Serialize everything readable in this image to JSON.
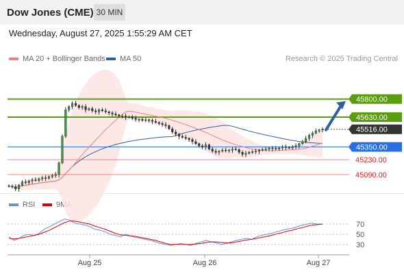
{
  "header": {
    "instrument": "Dow Jones (CME)",
    "timeframe": "30 MIN"
  },
  "datetime": "Wednesday, August 27, 2025 1:55:29 AM CET",
  "legend": {
    "bollinger": "MA 20 + Bollinger Bands",
    "ma50": "MA 50",
    "research": "Research © 2025 Trading Central",
    "rsi": "RSI",
    "rsi_ma": "9MA"
  },
  "colors": {
    "resistance": "#5a9e0f",
    "pivot": "#2a6fe0",
    "support": "#f08080",
    "current": "#333333",
    "ma20": "#f08080",
    "ma50": "#2f5f9e",
    "rsi": "#6a8fd8",
    "rsi_ma": "#e00000",
    "arrow": "#2f5f9e"
  },
  "chart_data": [
    {
      "type": "candlestick",
      "x_labels": [
        "Aug 25",
        "Aug 26",
        "Aug 27"
      ],
      "ylim": [
        44960,
        46120
      ],
      "levels": [
        {
          "value": 45800,
          "label": "45800.00",
          "kind": "resistance"
        },
        {
          "value": 45630,
          "label": "45630.00",
          "kind": "resistance"
        },
        {
          "value": 45516,
          "label": "45516.00",
          "kind": "current"
        },
        {
          "value": 45350,
          "label": "45350.00",
          "kind": "pivot"
        },
        {
          "value": 45230,
          "label": "45230.00",
          "kind": "support"
        },
        {
          "value": 45090,
          "label": "45090.00",
          "kind": "support"
        }
      ],
      "close_series": [
        44980,
        44975,
        44955,
        44990,
        45020,
        45015,
        45030,
        45040,
        45035,
        45050,
        45060,
        45055,
        45070,
        45080,
        45090,
        45200,
        45450,
        45700,
        45730,
        45760,
        45740,
        45720,
        45730,
        45700,
        45710,
        45690,
        45680,
        45700,
        45690,
        45680,
        45670,
        45660,
        45650,
        45640,
        45640,
        45630,
        45635,
        45620,
        45610,
        45610,
        45600,
        45605,
        45600,
        45590,
        45580,
        45570,
        45560,
        45550,
        45520,
        45490,
        45470,
        45450,
        45440,
        45430,
        45420,
        45400,
        45380,
        45360,
        45350,
        45370,
        45330,
        45310,
        45300,
        45310,
        45320,
        45315,
        45320,
        45330,
        45325,
        45300,
        45280,
        45290,
        45300,
        45305,
        45310,
        45320,
        45325,
        45330,
        45340,
        45335,
        45330,
        45340,
        45350,
        45345,
        45340,
        45350,
        45360,
        45380,
        45400,
        45430,
        45460,
        45480,
        45500,
        45510,
        45516
      ]
    },
    {
      "type": "line",
      "series_names": [
        "RSI",
        "9MA"
      ],
      "yticks": [
        70,
        50,
        30
      ],
      "ylim": [
        15,
        85
      ],
      "rsi": [
        45,
        38,
        42,
        48,
        50,
        47,
        52,
        60,
        65,
        70,
        75,
        80,
        78,
        72,
        70,
        68,
        65,
        60,
        58,
        55,
        50,
        48,
        45,
        50,
        47,
        44,
        42,
        40,
        38,
        35,
        32,
        30,
        28,
        30,
        32,
        30,
        28,
        32,
        35,
        38,
        35,
        33,
        30,
        32,
        35,
        38,
        40,
        42,
        40,
        45,
        48,
        50,
        52,
        55,
        58,
        60,
        62,
        65,
        68,
        70,
        72,
        70,
        70
      ],
      "rsi_ma": [
        42,
        41,
        42,
        44,
        46,
        48,
        50,
        54,
        58,
        63,
        68,
        73,
        76,
        76,
        74,
        72,
        70,
        66,
        63,
        60,
        56,
        52,
        49,
        48,
        47,
        46,
        44,
        42,
        40,
        38,
        35,
        32,
        30,
        30,
        30,
        30,
        30,
        31,
        32,
        34,
        35,
        35,
        34,
        33,
        33,
        35,
        37,
        39,
        40,
        42,
        44,
        46,
        48,
        51,
        53,
        56,
        58,
        61,
        63,
        66,
        68,
        69,
        70
      ]
    }
  ]
}
